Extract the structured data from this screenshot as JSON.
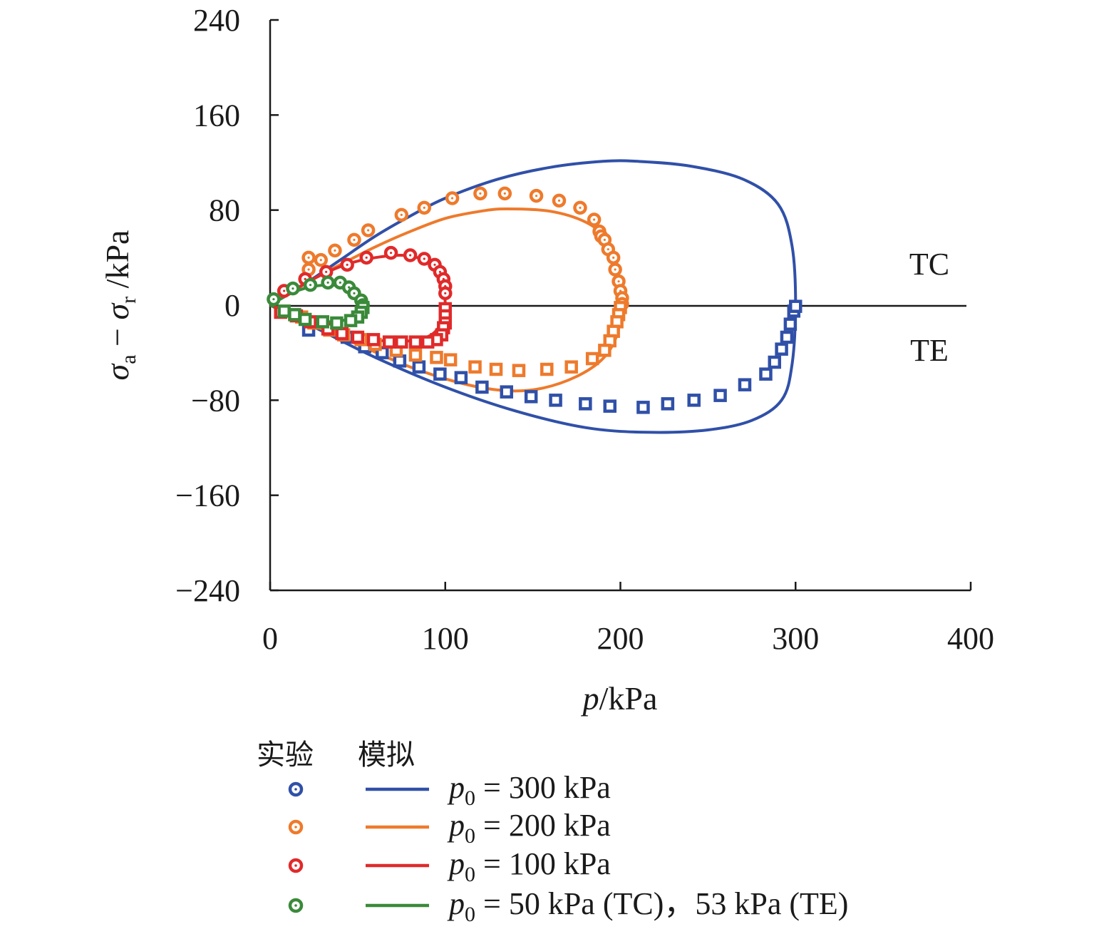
{
  "chart_data": {
    "type": "scatter",
    "xlabel": {
      "var": "p",
      "unit": "/kPa"
    },
    "ylabel": {
      "var1": "σ",
      "sub1": "a",
      "minus": " − ",
      "var2": "σ",
      "sub2": "r",
      "unit": " /kPa"
    },
    "xlim": [
      0,
      400
    ],
    "ylim": [
      -240,
      240
    ],
    "xticks": [
      "0",
      "100",
      "200",
      "300",
      "400"
    ],
    "yticks": [
      "240",
      "160",
      "80",
      "0",
      "−80",
      "−160",
      "−240"
    ],
    "region_labels": {
      "upper": "TC",
      "lower": "TE"
    },
    "legend": {
      "exp_header": "实验",
      "sim_header": "模拟",
      "entries": [
        {
          "var": "p",
          "sub": "0",
          "text": " = 300 kPa"
        },
        {
          "var": "p",
          "sub": "0",
          "text": " = 200 kPa"
        },
        {
          "var": "p",
          "sub": "0",
          "text": " = 100 kPa"
        },
        {
          "var": "p",
          "sub": "0",
          "text": " = 50 kPa (TC)，53 kPa (TE)"
        }
      ]
    },
    "colors": [
      "#3050a8",
      "#ee7a2c",
      "#e02a2a",
      "#3a8a3a"
    ],
    "series": [
      {
        "p0": 300,
        "experiment_TC": [],
        "experiment_TE": [
          [
            22,
            -21
          ],
          [
            44,
            -27
          ],
          [
            54,
            -35
          ],
          [
            64,
            -40
          ],
          [
            74,
            -47
          ],
          [
            85,
            -52
          ],
          [
            97,
            -58
          ],
          [
            109,
            -61
          ],
          [
            121,
            -69
          ],
          [
            135,
            -73
          ],
          [
            149,
            -77
          ],
          [
            163,
            -80
          ],
          [
            180,
            -83
          ],
          [
            194,
            -85
          ],
          [
            213,
            -86
          ],
          [
            227,
            -83
          ],
          [
            242,
            -80
          ],
          [
            257,
            -76
          ],
          [
            271,
            -67
          ],
          [
            283,
            -58
          ],
          [
            288,
            -48
          ],
          [
            292,
            -37
          ],
          [
            295,
            -27
          ],
          [
            297,
            -16
          ],
          [
            299,
            -5
          ],
          [
            300,
            -1
          ]
        ],
        "simulation": [
          [
            0,
            0
          ],
          [
            20,
            18
          ],
          [
            40,
            38
          ],
          [
            60,
            58
          ],
          [
            80,
            75
          ],
          [
            100,
            90
          ],
          [
            130,
            106
          ],
          [
            160,
            116
          ],
          [
            190,
            121
          ],
          [
            210,
            121
          ],
          [
            240,
            117
          ],
          [
            270,
            106
          ],
          [
            290,
            85
          ],
          [
            298,
            50
          ],
          [
            300,
            0
          ],
          [
            298,
            -50
          ],
          [
            292,
            -80
          ],
          [
            275,
            -97
          ],
          [
            250,
            -105
          ],
          [
            215,
            -107
          ],
          [
            180,
            -103
          ],
          [
            140,
            -89
          ],
          [
            100,
            -69
          ],
          [
            60,
            -44
          ],
          [
            30,
            -22
          ],
          [
            0,
            0
          ]
        ]
      },
      {
        "p0": 200,
        "experiment_TC": [
          [
            22,
            40
          ],
          [
            29,
            38
          ],
          [
            37,
            46
          ],
          [
            48,
            55
          ],
          [
            56,
            63
          ],
          [
            75,
            76
          ],
          [
            88,
            82
          ],
          [
            104,
            90
          ],
          [
            120,
            94
          ],
          [
            134,
            94
          ],
          [
            152,
            92
          ],
          [
            165,
            88
          ],
          [
            177,
            82
          ],
          [
            185,
            72
          ],
          [
            188,
            62
          ],
          [
            189,
            58
          ],
          [
            191,
            55
          ],
          [
            193,
            47
          ],
          [
            196,
            40
          ],
          [
            197,
            30
          ],
          [
            199,
            20
          ],
          [
            200,
            12
          ],
          [
            201,
            6
          ],
          [
            201,
            1
          ],
          [
            22,
            30
          ]
        ],
        "experiment_TE": [
          [
            200,
            -2
          ],
          [
            199,
            -8
          ],
          [
            198,
            -14
          ],
          [
            196,
            -22
          ],
          [
            194,
            -30
          ],
          [
            191,
            -38
          ],
          [
            184,
            -45
          ],
          [
            172,
            -52
          ],
          [
            158,
            -54
          ],
          [
            142,
            -55
          ],
          [
            129,
            -54
          ],
          [
            117,
            -52
          ],
          [
            103,
            -46
          ],
          [
            95,
            -44
          ],
          [
            83,
            -42
          ],
          [
            72,
            -38
          ],
          [
            60,
            -33
          ],
          [
            52,
            -29
          ],
          [
            42,
            -25
          ],
          [
            34,
            -21
          ],
          [
            25,
            -15
          ],
          [
            18,
            -10
          ]
        ],
        "simulation": [
          [
            0,
            0
          ],
          [
            20,
            18
          ],
          [
            40,
            34
          ],
          [
            60,
            49
          ],
          [
            80,
            62
          ],
          [
            100,
            73
          ],
          [
            120,
            79
          ],
          [
            135,
            81
          ],
          [
            160,
            79
          ],
          [
            180,
            70
          ],
          [
            192,
            56
          ],
          [
            198,
            35
          ],
          [
            200,
            0
          ],
          [
            198,
            -25
          ],
          [
            190,
            -45
          ],
          [
            175,
            -60
          ],
          [
            155,
            -70
          ],
          [
            135,
            -72
          ],
          [
            110,
            -66
          ],
          [
            80,
            -52
          ],
          [
            50,
            -33
          ],
          [
            25,
            -17
          ],
          [
            0,
            0
          ]
        ]
      },
      {
        "p0": 100,
        "experiment_TC": [
          [
            8,
            12
          ],
          [
            20,
            22
          ],
          [
            32,
            28
          ],
          [
            44,
            34
          ],
          [
            55,
            40
          ],
          [
            69,
            44
          ],
          [
            80,
            42
          ],
          [
            88,
            39
          ],
          [
            94,
            34
          ],
          [
            97,
            28
          ],
          [
            99,
            22
          ],
          [
            100,
            16
          ],
          [
            100,
            10
          ]
        ],
        "experiment_TE": [
          [
            100,
            -3
          ],
          [
            100,
            -9
          ],
          [
            100,
            -15
          ],
          [
            99,
            -19
          ],
          [
            98,
            -25
          ],
          [
            95,
            -29
          ],
          [
            90,
            -31
          ],
          [
            83,
            -31
          ],
          [
            75,
            -31
          ],
          [
            68,
            -31
          ],
          [
            59,
            -29
          ],
          [
            50,
            -27
          ],
          [
            41,
            -24
          ],
          [
            33,
            -20
          ],
          [
            23,
            -14
          ],
          [
            15,
            -9
          ],
          [
            6,
            -6
          ]
        ],
        "simulation": [
          [
            0,
            0
          ],
          [
            15,
            14
          ],
          [
            30,
            26
          ],
          [
            45,
            35
          ],
          [
            60,
            40
          ],
          [
            75,
            42
          ],
          [
            86,
            39
          ],
          [
            94,
            31
          ],
          [
            98,
            20
          ],
          [
            100,
            0
          ],
          [
            98,
            -14
          ],
          [
            92,
            -25
          ],
          [
            80,
            -30
          ],
          [
            65,
            -30
          ],
          [
            50,
            -27
          ],
          [
            35,
            -21
          ],
          [
            18,
            -12
          ],
          [
            0,
            0
          ]
        ]
      },
      {
        "p0": 50,
        "experiment_TC": [
          [
            2,
            5
          ],
          [
            13,
            14
          ],
          [
            23,
            17
          ],
          [
            33,
            19
          ],
          [
            40,
            19
          ],
          [
            45,
            15
          ],
          [
            48,
            10
          ],
          [
            52,
            4
          ],
          [
            53,
            0
          ]
        ],
        "experiment_TE": [
          [
            53,
            -2
          ],
          [
            52,
            -6
          ],
          [
            50,
            -10
          ],
          [
            46,
            -13
          ],
          [
            38,
            -15
          ],
          [
            30,
            -14
          ],
          [
            20,
            -12
          ],
          [
            14,
            -8
          ],
          [
            8,
            -5
          ]
        ],
        "simulation": [
          [
            0,
            0
          ],
          [
            12,
            10
          ],
          [
            22,
            15
          ],
          [
            32,
            17
          ],
          [
            40,
            16
          ],
          [
            46,
            12
          ],
          [
            50,
            6
          ],
          [
            52,
            0
          ],
          [
            50,
            -6
          ],
          [
            45,
            -11
          ],
          [
            38,
            -14
          ],
          [
            28,
            -13
          ],
          [
            16,
            -9
          ],
          [
            0,
            0
          ]
        ]
      }
    ]
  }
}
